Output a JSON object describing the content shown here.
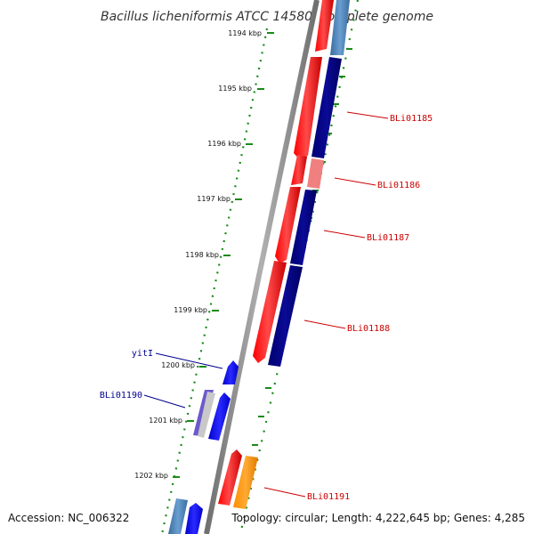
{
  "title": "Bacillus licheniformis ATCC 14580, complete genome",
  "footer": {
    "accession": "Accession: NC_006322",
    "topology": "Topology: circular; Length: 4,222,645 bp; Genes: 4,285"
  },
  "tick_labels": [
    "1194 kbp",
    "1195 kbp",
    "1196 kbp",
    "1197 kbp",
    "1198 kbp",
    "1199 kbp",
    "1200 kbp",
    "1201 kbp",
    "1202 kbp"
  ],
  "gene_labels": [
    {
      "text": "BLi01185",
      "color": "#cc0000"
    },
    {
      "text": "BLi01186",
      "color": "#cc0000"
    },
    {
      "text": "BLi01187",
      "color": "#cc0000"
    },
    {
      "text": "BLi01188",
      "color": "#cc0000"
    },
    {
      "text": "yitI",
      "color": "#00008b"
    },
    {
      "text": "BLi01190",
      "color": "#00008b"
    },
    {
      "text": "BLi01191",
      "color": "#cc0000"
    }
  ],
  "colors": {
    "backbone": "#888888",
    "tick_green": "#1a8a1a",
    "red": "#ff0000",
    "pink": "#f08080",
    "navy": "#000080",
    "steelblue": "#4682b4",
    "blue": "#0000ff",
    "orange": "#ff8c00"
  }
}
